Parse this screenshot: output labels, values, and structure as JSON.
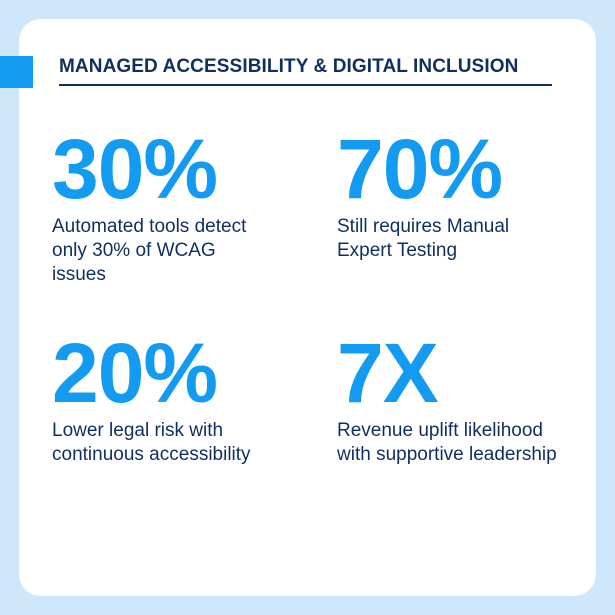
{
  "header": {
    "title": "MANAGED ACCESSIBILITY & DIGITAL INCLUSION"
  },
  "stats": [
    {
      "value": "30%",
      "description": "Automated tools detect only 30% of WCAG issues"
    },
    {
      "value": "70%",
      "description": "Still requires Manual Expert Testing"
    },
    {
      "value": "20%",
      "description": "Lower legal risk with continuous accessibility"
    },
    {
      "value": "7X",
      "description": "Revenue uplift likelihood with supportive leadership"
    }
  ],
  "colors": {
    "background": "#cfe7fb",
    "card": "#ffffff",
    "accent": "#139bf1",
    "text": "#0f2f5f"
  }
}
